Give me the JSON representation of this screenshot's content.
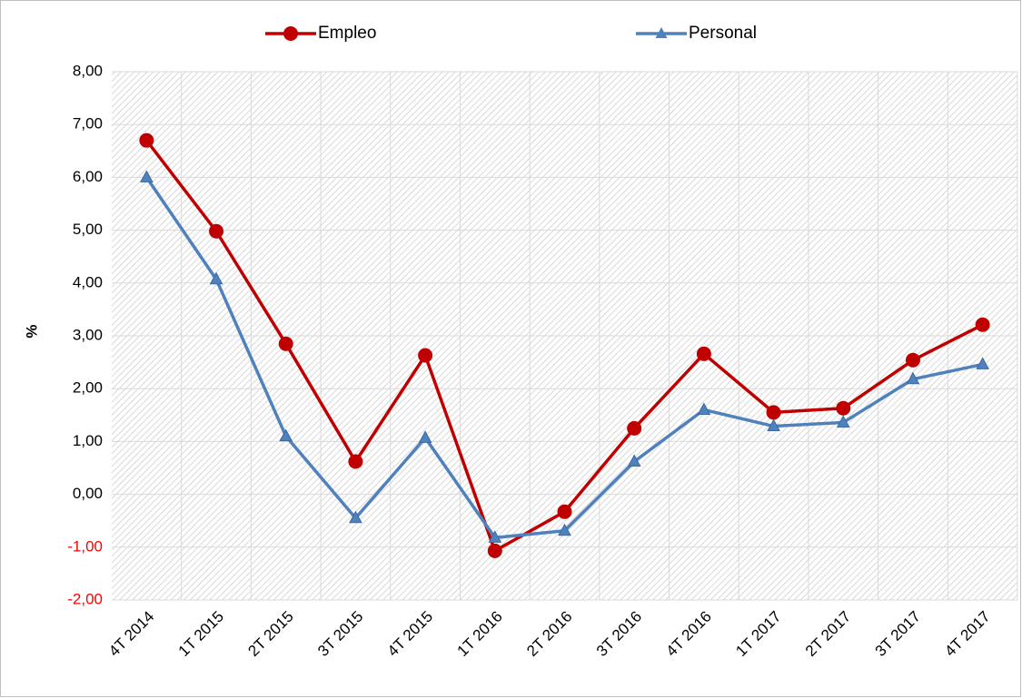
{
  "chart_data": {
    "type": "line",
    "ylabel": "%",
    "categories": [
      "4T 2014",
      "1T 2015",
      "2T 2015",
      "3T 2015",
      "4T 2015",
      "1T 2016",
      "2T 2016",
      "3T 2016",
      "4T 2016",
      "1T 2017",
      "2T 2017",
      "3T 2017",
      "4T 2017"
    ],
    "series": [
      {
        "name": "Empleo",
        "color": "#c00000",
        "marker": "circle",
        "values": [
          6.7,
          4.98,
          2.85,
          0.62,
          2.63,
          -1.07,
          -0.33,
          1.25,
          2.66,
          1.55,
          1.63,
          2.54,
          3.21
        ]
      },
      {
        "name": "Personal",
        "color": "#4f81bd",
        "marker": "triangle",
        "values": [
          6.0,
          4.07,
          1.1,
          -0.45,
          1.07,
          -0.82,
          -0.69,
          0.62,
          1.6,
          1.29,
          1.36,
          2.18,
          2.46
        ]
      }
    ],
    "ylim": [
      -2,
      8
    ],
    "yticks": [
      {
        "value": -2,
        "label": "-2,00"
      },
      {
        "value": -1,
        "label": "-1,00"
      },
      {
        "value": 0,
        "label": "0,00"
      },
      {
        "value": 1,
        "label": "1,00"
      },
      {
        "value": 2,
        "label": "2,00"
      },
      {
        "value": 3,
        "label": "3,00"
      },
      {
        "value": 4,
        "label": "4,00"
      },
      {
        "value": 5,
        "label": "5,00"
      },
      {
        "value": 6,
        "label": "6,00"
      },
      {
        "value": 7,
        "label": "7,00"
      },
      {
        "value": 8,
        "label": "8,00"
      }
    ],
    "negative_tick_color": "#ff0000",
    "grid": true,
    "legend": "top"
  }
}
